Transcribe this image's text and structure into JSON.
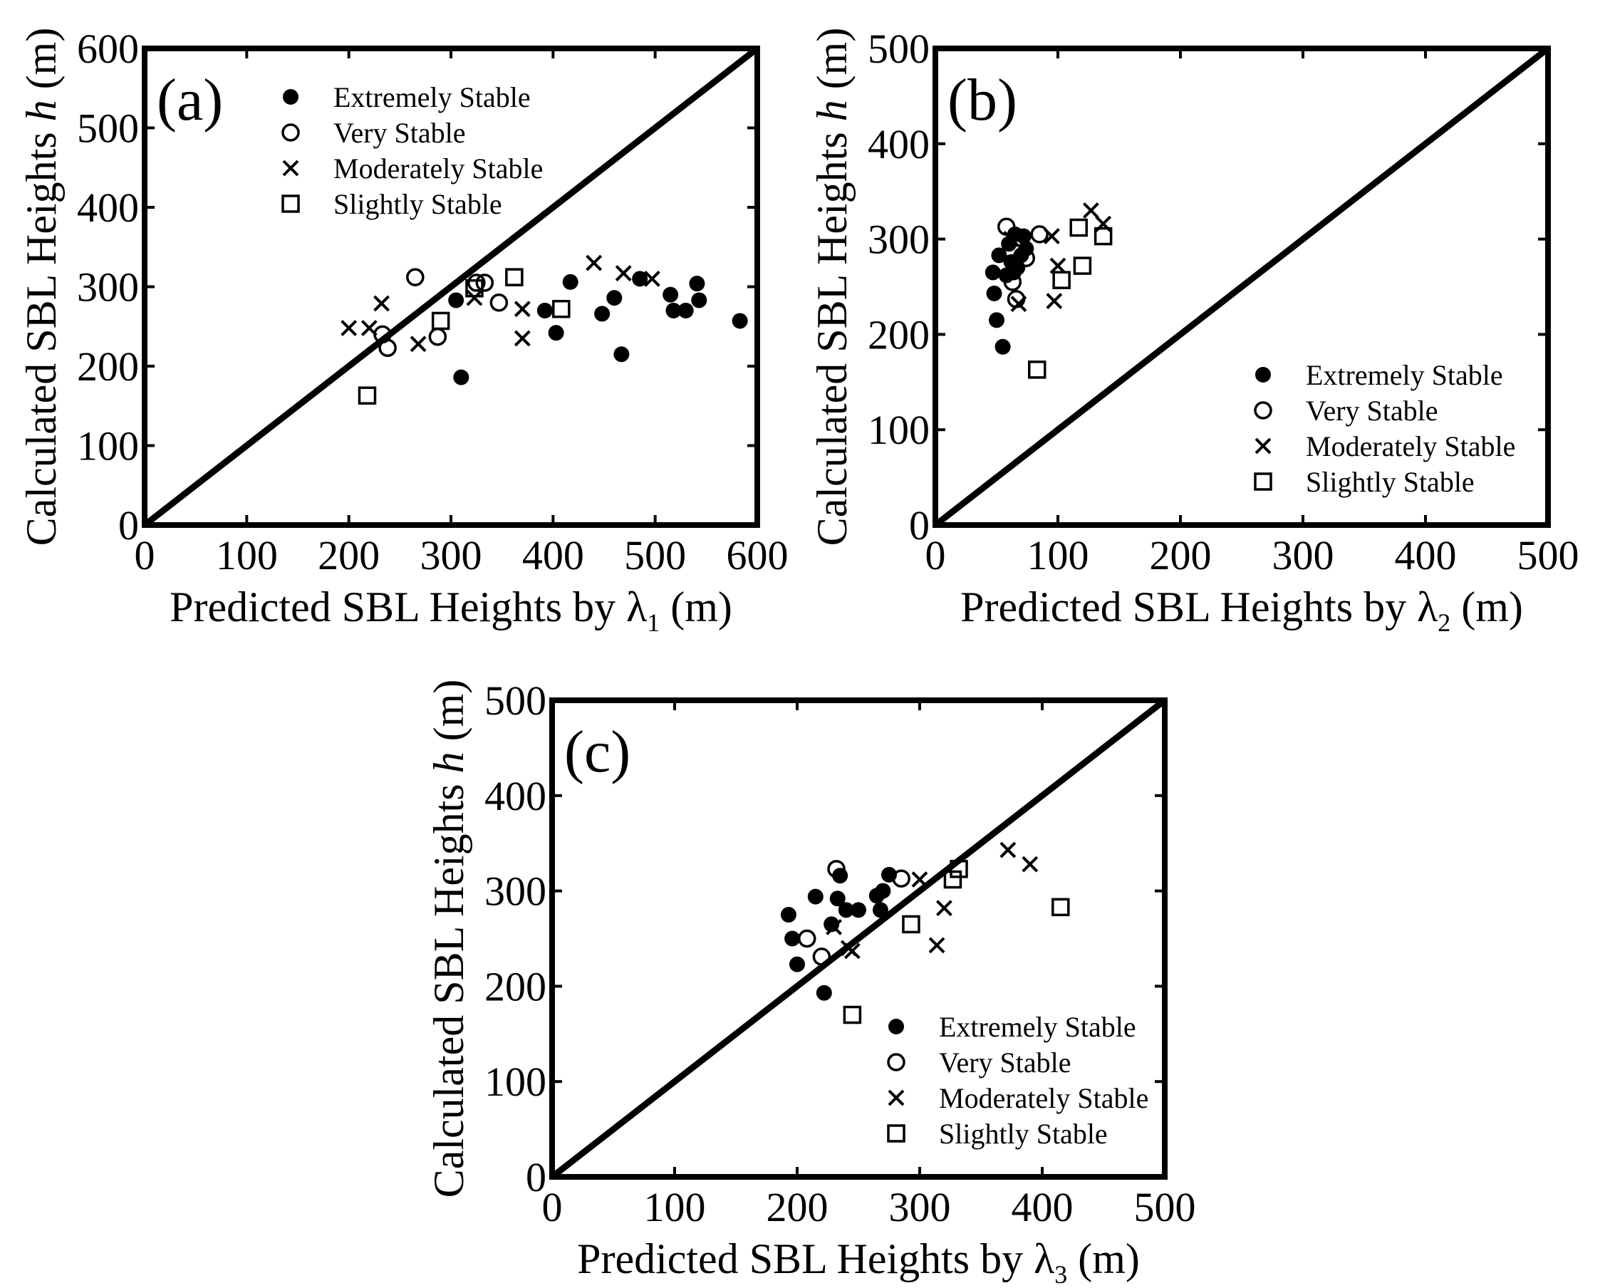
{
  "chart_data": [
    {
      "type": "scatter",
      "panel_label": "(a)",
      "title": "",
      "xlabel": "Predicted SBL Heights by λ",
      "xlabel_sub": "1",
      "xlabel_unit": " (m)",
      "ylabel": "Calculated SBL Heights ",
      "ylabel_italic": "h",
      "ylabel_unit": " (m)",
      "xlim": [
        0,
        600
      ],
      "ylim": [
        0,
        600
      ],
      "xticks": [
        0,
        100,
        200,
        300,
        400,
        500,
        600
      ],
      "yticks": [
        0,
        100,
        200,
        300,
        400,
        500,
        600
      ],
      "legend_position": "top-left",
      "reference_line": "1:1",
      "series": [
        {
          "name": "Extremely Stable",
          "marker": "filled-circle",
          "points": [
            [
              305,
              283
            ],
            [
              310,
              186
            ],
            [
              403,
              242
            ],
            [
              392,
              270
            ],
            [
              417,
              306
            ],
            [
              448,
              266
            ],
            [
              460,
              286
            ],
            [
              467,
              215
            ],
            [
              485,
              310
            ],
            [
              515,
              290
            ],
            [
              518,
              270
            ],
            [
              530,
              270
            ],
            [
              541,
              304
            ],
            [
              543,
              283
            ],
            [
              583,
              257
            ]
          ]
        },
        {
          "name": "Very Stable",
          "marker": "open-circle",
          "points": [
            [
              233,
              240
            ],
            [
              238,
              223
            ],
            [
              265,
              312
            ],
            [
              287,
              237
            ],
            [
              325,
              305
            ],
            [
              333,
              305
            ],
            [
              347,
              280
            ]
          ]
        },
        {
          "name": "Moderately Stable",
          "marker": "x",
          "points": [
            [
              200,
              248
            ],
            [
              220,
              248
            ],
            [
              232,
              279
            ],
            [
              268,
              228
            ],
            [
              323,
              286
            ],
            [
              370,
              272
            ],
            [
              370,
              235
            ],
            [
              440,
              330
            ],
            [
              469,
              317
            ],
            [
              497,
              310
            ]
          ]
        },
        {
          "name": "Slightly Stable",
          "marker": "open-square",
          "points": [
            [
              218,
              163
            ],
            [
              290,
              257
            ],
            [
              323,
              298
            ],
            [
              362,
              312
            ],
            [
              408,
              272
            ]
          ]
        }
      ]
    },
    {
      "type": "scatter",
      "panel_label": "(b)",
      "title": "",
      "xlabel": "Predicted SBL Heights by λ",
      "xlabel_sub": "2",
      "xlabel_unit": " (m)",
      "ylabel": "Calculated SBL Heights ",
      "ylabel_italic": "h",
      "ylabel_unit": " (m)",
      "xlim": [
        0,
        500
      ],
      "ylim": [
        0,
        500
      ],
      "xticks": [
        0,
        100,
        200,
        300,
        400,
        500
      ],
      "yticks": [
        0,
        100,
        200,
        300,
        400,
        500
      ],
      "legend_position": "bottom-right",
      "reference_line": "1:1",
      "series": [
        {
          "name": "Extremely Stable",
          "marker": "filled-circle",
          "points": [
            [
              47,
              265
            ],
            [
              48,
              243
            ],
            [
              50,
              215
            ],
            [
              52,
              283
            ],
            [
              55,
              187
            ],
            [
              58,
              262
            ],
            [
              60,
              295
            ],
            [
              62,
              276
            ],
            [
              64,
              265
            ],
            [
              65,
              305
            ],
            [
              67,
              270
            ],
            [
              70,
              283
            ],
            [
              72,
              303
            ],
            [
              74,
              290
            ]
          ]
        },
        {
          "name": "Very Stable",
          "marker": "open-circle",
          "points": [
            [
              58,
              313
            ],
            [
              63,
              255
            ],
            [
              66,
              237
            ],
            [
              74,
              280
            ],
            [
              85,
              305
            ]
          ]
        },
        {
          "name": "Moderately Stable",
          "marker": "x",
          "points": [
            [
              62,
              300
            ],
            [
              68,
              232
            ],
            [
              95,
              303
            ],
            [
              97,
              235
            ],
            [
              100,
              272
            ],
            [
              127,
              330
            ],
            [
              137,
              316
            ]
          ]
        },
        {
          "name": "Slightly Stable",
          "marker": "open-square",
          "points": [
            [
              83,
              163
            ],
            [
              103,
              257
            ],
            [
              117,
              312
            ],
            [
              120,
              272
            ],
            [
              137,
              303
            ]
          ]
        }
      ]
    },
    {
      "type": "scatter",
      "panel_label": "(c)",
      "title": "",
      "xlabel": "Predicted SBL Heights by λ",
      "xlabel_sub": "3",
      "xlabel_unit": " (m)",
      "ylabel": "Calculated SBL Heights ",
      "ylabel_italic": "h",
      "ylabel_unit": " (m)",
      "xlim": [
        0,
        500
      ],
      "ylim": [
        0,
        500
      ],
      "xticks": [
        0,
        100,
        200,
        300,
        400,
        500
      ],
      "yticks": [
        0,
        100,
        200,
        300,
        400,
        500
      ],
      "legend_position": "bottom-right",
      "reference_line": "1:1",
      "series": [
        {
          "name": "Extremely Stable",
          "marker": "filled-circle",
          "points": [
            [
              193,
              275
            ],
            [
              196,
              250
            ],
            [
              200,
              223
            ],
            [
              215,
              294
            ],
            [
              222,
              193
            ],
            [
              228,
              265
            ],
            [
              233,
              292
            ],
            [
              235,
              316
            ],
            [
              240,
              280
            ],
            [
              250,
              280
            ],
            [
              265,
              295
            ],
            [
              268,
              280
            ],
            [
              270,
              300
            ],
            [
              275,
              317
            ]
          ]
        },
        {
          "name": "Very Stable",
          "marker": "open-circle",
          "points": [
            [
              208,
              250
            ],
            [
              220,
              231
            ],
            [
              232,
              323
            ],
            [
              285,
              313
            ]
          ]
        },
        {
          "name": "Moderately Stable",
          "marker": "x",
          "points": [
            [
              230,
              262
            ],
            [
              242,
              240
            ],
            [
              245,
              237
            ],
            [
              300,
              312
            ],
            [
              314,
              243
            ],
            [
              320,
              282
            ],
            [
              372,
              343
            ],
            [
              390,
              328
            ]
          ]
        },
        {
          "name": "Slightly Stable",
          "marker": "open-square",
          "points": [
            [
              245,
              170
            ],
            [
              293,
              265
            ],
            [
              327,
              312
            ],
            [
              332,
              323
            ],
            [
              415,
              283
            ]
          ]
        }
      ]
    }
  ]
}
